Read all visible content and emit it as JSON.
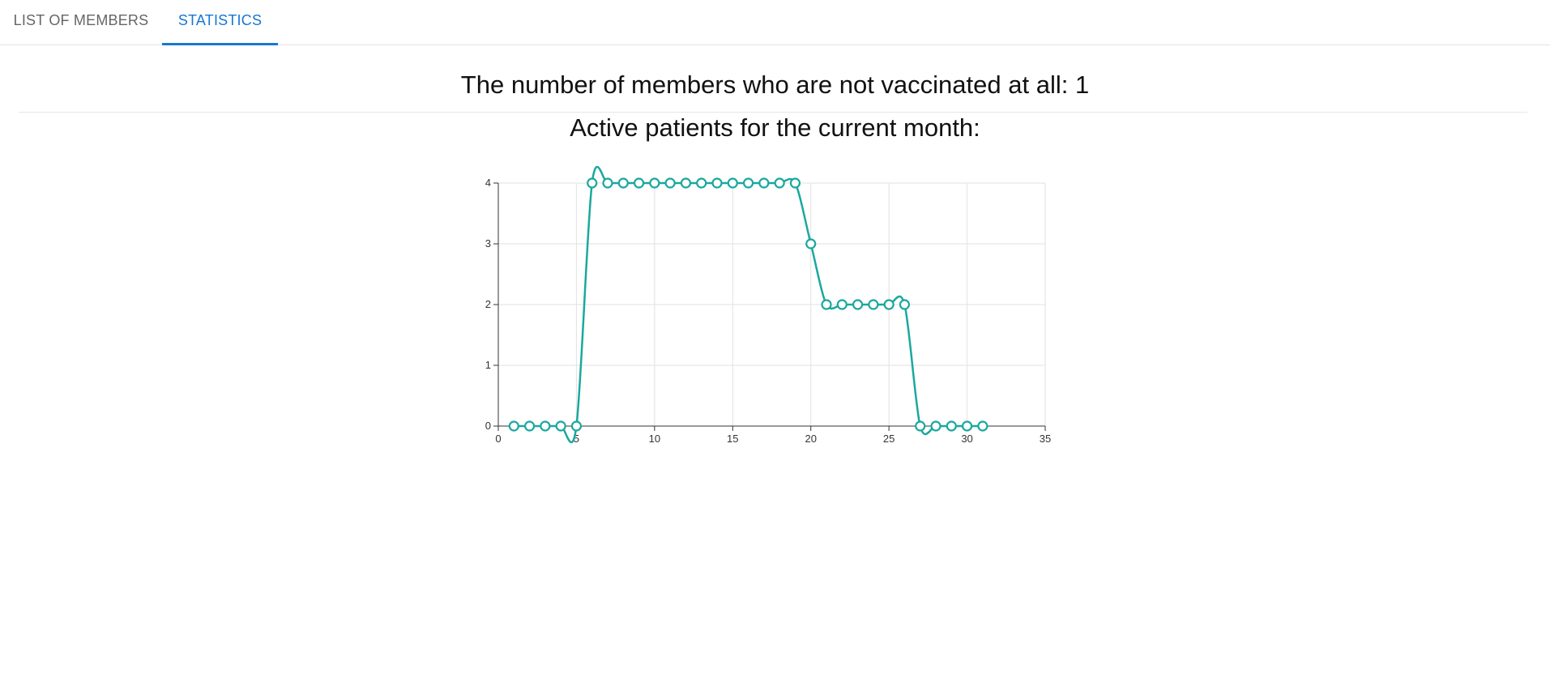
{
  "tabs": {
    "members_label": "LIST OF MEMBERS",
    "statistics_label": "STATISTICS",
    "active_color": "#1976d2"
  },
  "stats": {
    "unvaccinated_text": "The number of members who are not vaccinated at all: 1",
    "active_title": "Active patients for the current month:"
  },
  "chart_data": {
    "type": "line",
    "series_color": "#1aa89f",
    "xlim": [
      0,
      35
    ],
    "ylim": [
      0,
      4
    ],
    "xticks": [
      0,
      5,
      10,
      15,
      20,
      25,
      30,
      35
    ],
    "yticks": [
      0,
      1,
      2,
      3,
      4
    ],
    "grid": true,
    "x": [
      1,
      2,
      3,
      4,
      5,
      6,
      7,
      8,
      9,
      10,
      11,
      12,
      13,
      14,
      15,
      16,
      17,
      18,
      19,
      20,
      21,
      22,
      23,
      24,
      25,
      26,
      27,
      28,
      29,
      30,
      31
    ],
    "values": [
      0,
      0,
      0,
      0,
      0,
      4,
      4,
      4,
      4,
      4,
      4,
      4,
      4,
      4,
      4,
      4,
      4,
      4,
      4,
      3,
      2,
      2,
      2,
      2,
      2,
      2,
      0,
      0,
      0,
      0,
      0
    ]
  }
}
